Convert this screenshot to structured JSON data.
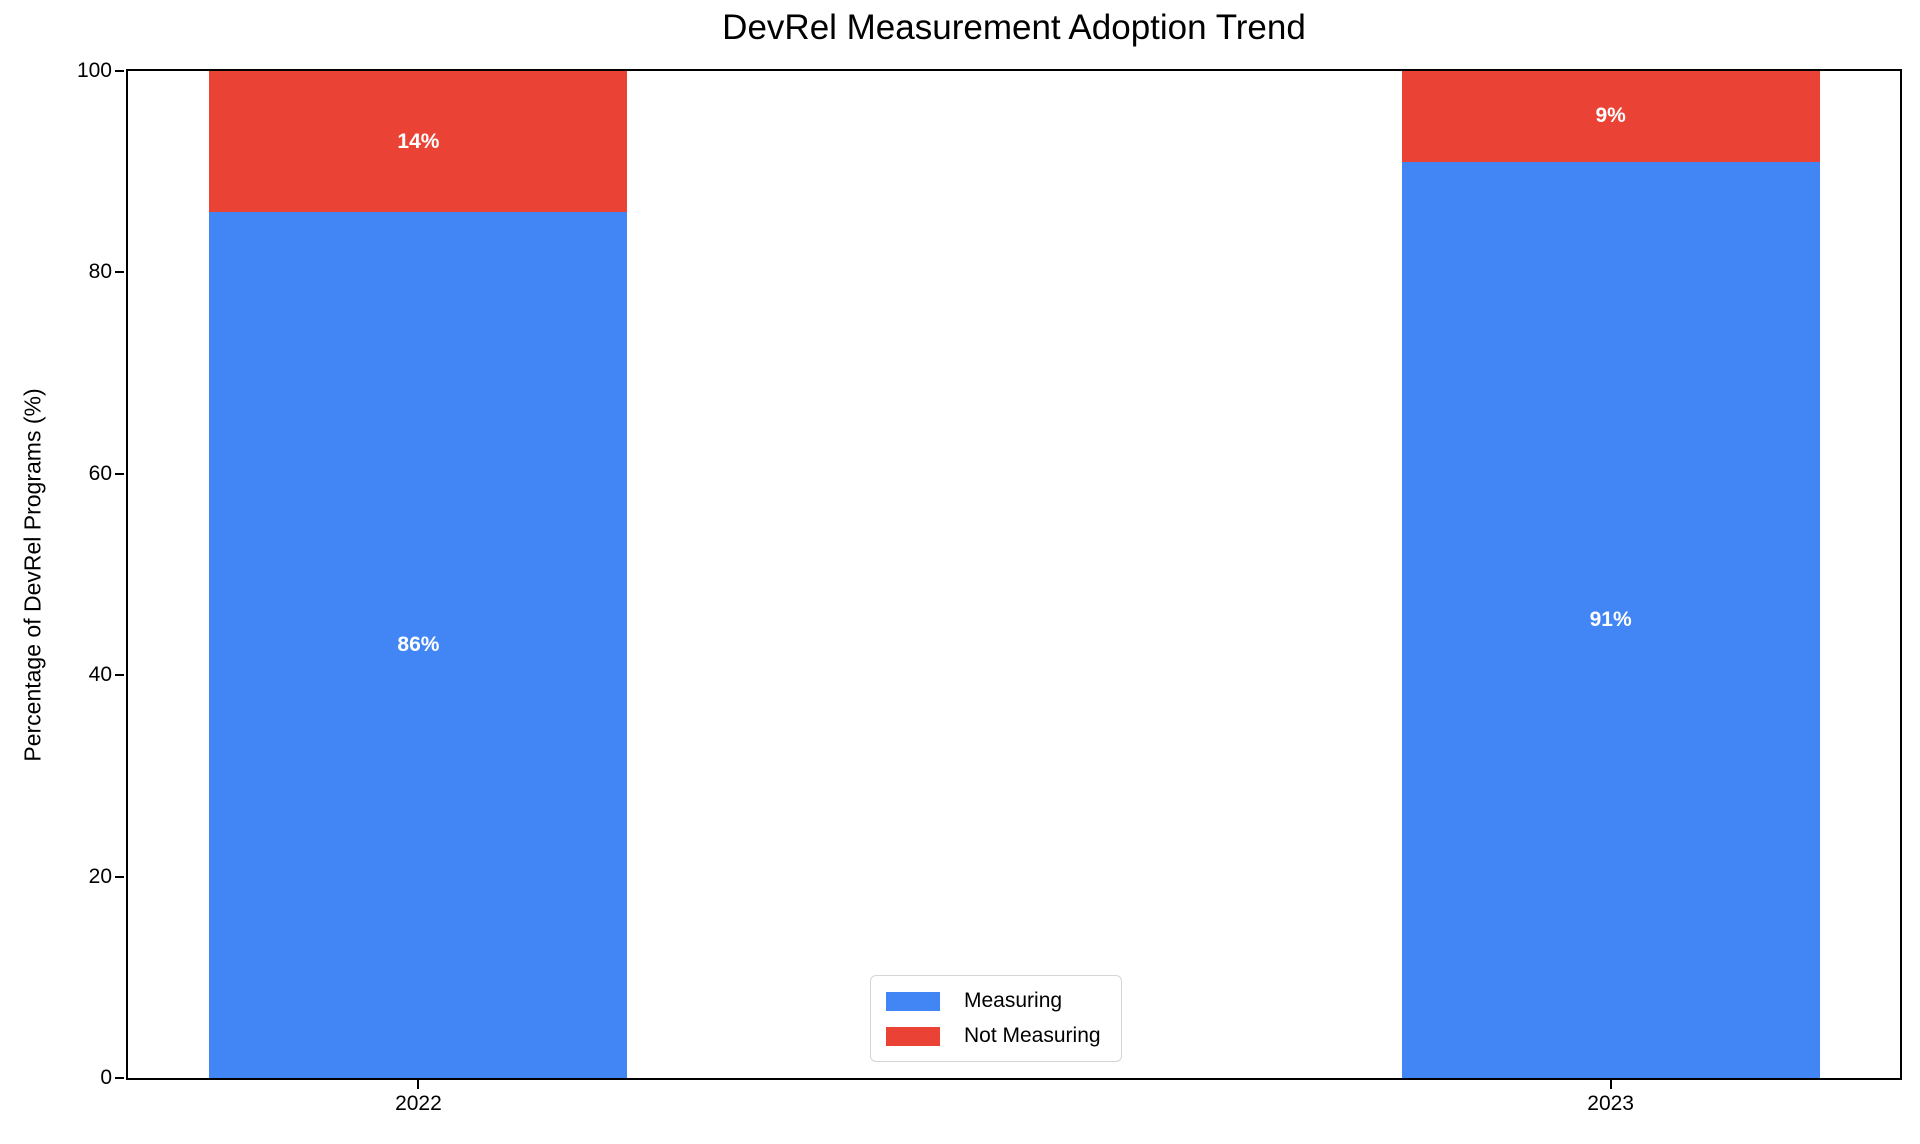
{
  "chart_data": {
    "type": "bar",
    "stacked": true,
    "title": "DevRel Measurement Adoption Trend",
    "ylabel": "Percentage of DevRel Programs (%)",
    "xlabel": "",
    "categories": [
      "2022",
      "2023"
    ],
    "series": [
      {
        "name": "Measuring",
        "color": "#4285F4",
        "values": [
          86,
          91
        ],
        "labels": [
          "86%",
          "91%"
        ]
      },
      {
        "name": "Not Measuring",
        "color": "#EA4335",
        "values": [
          14,
          9
        ],
        "labels": [
          "14%",
          "9%"
        ]
      }
    ],
    "ylim": [
      0,
      100
    ],
    "yticks": [
      "0",
      "20",
      "40",
      "60",
      "80",
      "100"
    ],
    "grid": false,
    "legend": {
      "entries": [
        "Measuring",
        "Not Measuring"
      ],
      "position": "inside lower-center"
    },
    "bar_label_color": "#ffffff",
    "axis_color": "#000000",
    "background_color": "#ffffff"
  }
}
